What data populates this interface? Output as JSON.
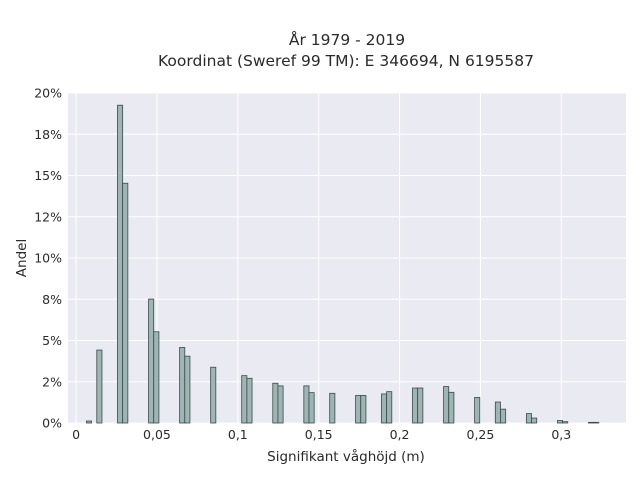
{
  "chart_data": {
    "type": "bar",
    "title_line1": "År 1979 - 2019",
    "title_line2": "Koordinat (Sweref 99 TM): E 346694, N 6195587",
    "xlabel": "Signifikant våghöjd (m)",
    "ylabel": "Andel",
    "xlim": [
      -0.005,
      0.34
    ],
    "ylim": [
      0,
      0.2
    ],
    "grid": true,
    "x_ticks": [
      {
        "v": 0,
        "label": "0"
      },
      {
        "v": 0.05,
        "label": "0,05"
      },
      {
        "v": 0.1,
        "label": "0,1"
      },
      {
        "v": 0.15,
        "label": "0,15"
      },
      {
        "v": 0.2,
        "label": "0,2"
      },
      {
        "v": 0.25,
        "label": "0,25"
      },
      {
        "v": 0.3,
        "label": "0,3"
      }
    ],
    "y_ticks": [
      {
        "v": 0,
        "label": "0%"
      },
      {
        "v": 0.025,
        "label": "2%"
      },
      {
        "v": 0.05,
        "label": "5%"
      },
      {
        "v": 0.075,
        "label": "8%"
      },
      {
        "v": 0.1,
        "label": "10%"
      },
      {
        "v": 0.125,
        "label": "12%"
      },
      {
        "v": 0.15,
        "label": "15%"
      },
      {
        "v": 0.175,
        "label": "18%"
      },
      {
        "v": 0.2,
        "label": "20%"
      }
    ],
    "bar_width": 0.0032,
    "bar_color": "#9eb5b5",
    "bar_edge_color": "#3a4a4a",
    "background_color": "#eaeaf2",
    "bins": [
      {
        "x": 0.0064,
        "v": 0.0012
      },
      {
        "x": 0.0096,
        "v": 0.0
      },
      {
        "x": 0.0128,
        "v": 0.0442
      },
      {
        "x": 0.0256,
        "v": 0.1926
      },
      {
        "x": 0.0288,
        "v": 0.1453
      },
      {
        "x": 0.0448,
        "v": 0.0751
      },
      {
        "x": 0.048,
        "v": 0.0553
      },
      {
        "x": 0.064,
        "v": 0.0458
      },
      {
        "x": 0.0672,
        "v": 0.0405
      },
      {
        "x": 0.0832,
        "v": 0.0338
      },
      {
        "x": 0.1024,
        "v": 0.0287
      },
      {
        "x": 0.1056,
        "v": 0.0271
      },
      {
        "x": 0.1216,
        "v": 0.0241
      },
      {
        "x": 0.1248,
        "v": 0.0225
      },
      {
        "x": 0.1408,
        "v": 0.0225
      },
      {
        "x": 0.144,
        "v": 0.0184
      },
      {
        "x": 0.1568,
        "v": 0.018
      },
      {
        "x": 0.1728,
        "v": 0.0167
      },
      {
        "x": 0.176,
        "v": 0.0167
      },
      {
        "x": 0.1888,
        "v": 0.0176
      },
      {
        "x": 0.192,
        "v": 0.019
      },
      {
        "x": 0.208,
        "v": 0.0212
      },
      {
        "x": 0.2112,
        "v": 0.0212
      },
      {
        "x": 0.2272,
        "v": 0.0221
      },
      {
        "x": 0.2304,
        "v": 0.0186
      },
      {
        "x": 0.2464,
        "v": 0.0155
      },
      {
        "x": 0.2592,
        "v": 0.0127
      },
      {
        "x": 0.2624,
        "v": 0.0084
      },
      {
        "x": 0.2784,
        "v": 0.0057
      },
      {
        "x": 0.2816,
        "v": 0.003
      },
      {
        "x": 0.2976,
        "v": 0.0015
      },
      {
        "x": 0.3008,
        "v": 0.0008
      },
      {
        "x": 0.3168,
        "v": 0.0004
      },
      {
        "x": 0.32,
        "v": 0.0004
      }
    ]
  }
}
